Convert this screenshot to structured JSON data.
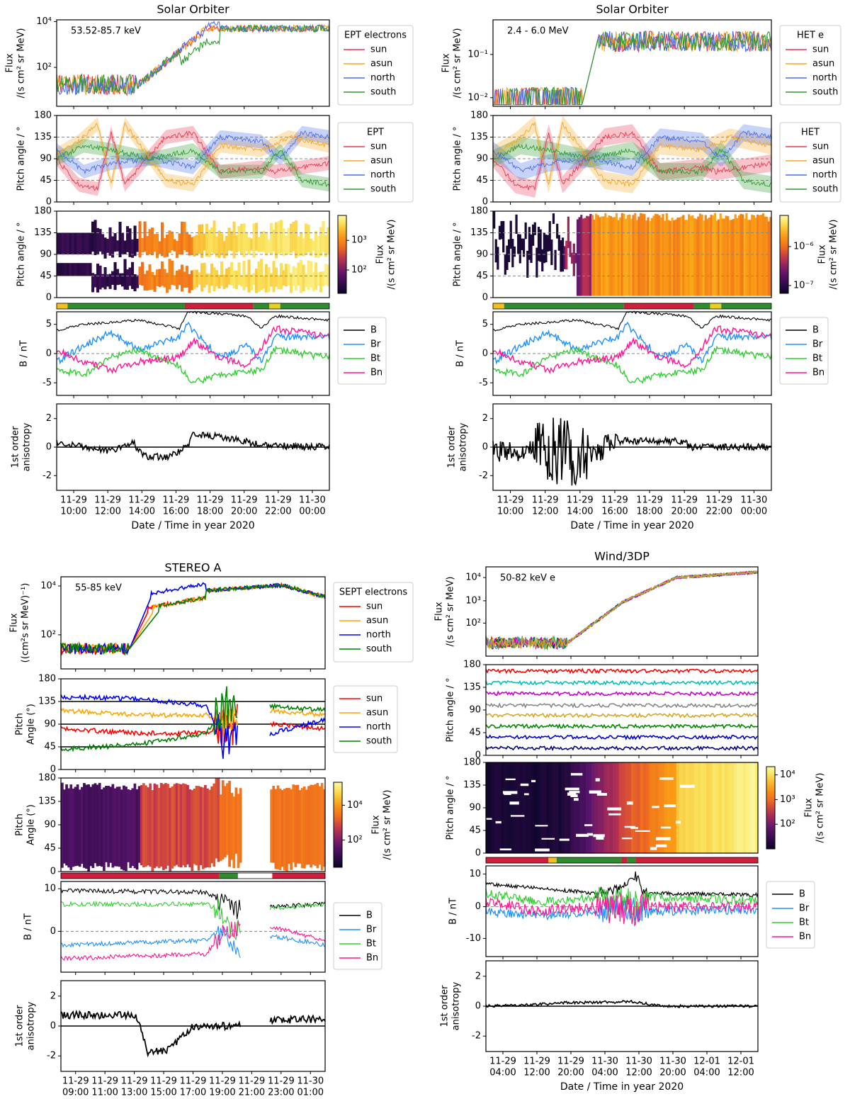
{
  "figure": {
    "panels": [
      {
        "title": "Solar Orbiter",
        "energy_label": "53.52-85.7 keV",
        "xlabel": "Date / Time in year 2020",
        "xticks": [
          [
            "11-29",
            "10:00"
          ],
          [
            "11-29",
            "12:00"
          ],
          [
            "11-29",
            "14:00"
          ],
          [
            "11-29",
            "16:00"
          ],
          [
            "11-29",
            "18:00"
          ],
          [
            "11-29",
            "20:00"
          ],
          [
            "11-29",
            "22:00"
          ],
          [
            "11-30",
            "00:00"
          ]
        ],
        "flux": {
          "ylabel": [
            "Flux",
            "/(s cm² sr MeV)"
          ],
          "ytick_labels": [
            "10⁴",
            "10²"
          ],
          "legend_title": "EPT electrons",
          "legend": [
            "sun",
            "asun",
            "north",
            "south"
          ]
        },
        "pa": {
          "ylabel": "Pitch angle / °",
          "ytick_labels": [
            "0",
            "45",
            "90",
            "135",
            "180"
          ],
          "legend_title": "EPT",
          "legend": [
            "sun",
            "asun",
            "north",
            "south"
          ]
        },
        "spec": {
          "ylabel": "Pitch angle / °",
          "ytick_labels": [
            "0",
            "45",
            "90",
            "135",
            "180"
          ],
          "cbar_label": [
            "Flux",
            "/(s cm² sr MeV)"
          ],
          "cbar_ticks": [
            "10³",
            "10²"
          ]
        },
        "b": {
          "ylabel": "B / nT",
          "ytick_labels": [
            "5",
            "0",
            "-5"
          ],
          "legend": [
            "B",
            "Br",
            "Bt",
            "Bn"
          ]
        },
        "ani": {
          "ylabel": [
            "1st order",
            "anisotropy"
          ],
          "ytick_labels": [
            "2",
            "0",
            "-2"
          ]
        }
      },
      {
        "title": "Solar Orbiter",
        "energy_label": "2.4 - 6.0 MeV",
        "xlabel": "Date / Time in year 2020",
        "xticks": [
          [
            "11-29",
            "10:00"
          ],
          [
            "11-29",
            "12:00"
          ],
          [
            "11-29",
            "14:00"
          ],
          [
            "11-29",
            "16:00"
          ],
          [
            "11-29",
            "18:00"
          ],
          [
            "11-29",
            "20:00"
          ],
          [
            "11-29",
            "22:00"
          ],
          [
            "11-30",
            "00:00"
          ]
        ],
        "flux": {
          "ylabel": [
            "Flux",
            "/(s cm² sr MeV)"
          ],
          "ytick_labels": [
            "10⁻¹",
            "10⁻²"
          ],
          "legend_title": "HET e",
          "legend": [
            "sun",
            "asun",
            "north",
            "south"
          ]
        },
        "pa": {
          "ylabel": "Pitch angle / °",
          "ytick_labels": [
            "0",
            "45",
            "90",
            "135",
            "180"
          ],
          "legend_title": "HET",
          "legend": [
            "sun",
            "asun",
            "north",
            "south"
          ]
        },
        "spec": {
          "ylabel": "Pitch angle / °",
          "ytick_labels": [
            "0",
            "45",
            "90",
            "135",
            "180"
          ],
          "cbar_label": [
            "Flux",
            "/(s cm² sr MeV)"
          ],
          "cbar_ticks": [
            "10⁻⁶",
            "10⁻⁷"
          ]
        },
        "b": {
          "ylabel": "B / nT",
          "ytick_labels": [
            "5",
            "0",
            "-5"
          ],
          "legend": [
            "B",
            "Br",
            "Bt",
            "Bn"
          ]
        },
        "ani": {
          "ylabel": [
            "1st order",
            "anisotropy"
          ],
          "ytick_labels": [
            "2",
            "0",
            "-2"
          ]
        }
      },
      {
        "title": "STEREO A",
        "energy_label": "55-85 keV",
        "xlabel": "",
        "xticks": [
          [
            "11-29",
            "09:00"
          ],
          [
            "11-29",
            "11:00"
          ],
          [
            "11-29",
            "13:00"
          ],
          [
            "11-29",
            "15:00"
          ],
          [
            "11-29",
            "17:00"
          ],
          [
            "11-29",
            "19:00"
          ],
          [
            "11-29",
            "21:00"
          ],
          [
            "11-29",
            "23:00"
          ],
          [
            "11-30",
            "01:00"
          ]
        ],
        "flux": {
          "ylabel": [
            "Flux",
            "((cm²s sr MeV)⁻¹)"
          ],
          "ytick_labels": [
            "10⁴",
            "10²"
          ],
          "legend_title": "SEPT electrons",
          "legend": [
            "sun",
            "asun",
            "north",
            "south"
          ]
        },
        "pa": {
          "ylabel": [
            "Pitch",
            "Angle (°)"
          ],
          "ytick_labels": [
            "0",
            "45",
            "90",
            "135",
            "180"
          ],
          "legend_title": "",
          "legend": [
            "sun",
            "asun",
            "north",
            "south"
          ]
        },
        "spec": {
          "ylabel": [
            "Pitch",
            "Angle (°)"
          ],
          "ytick_labels": [
            "0",
            "45",
            "90",
            "135",
            "180"
          ],
          "cbar_label": [
            "Flux",
            "/(s cm² sr MeV)"
          ],
          "cbar_ticks": [
            "10⁴",
            "10²"
          ]
        },
        "b": {
          "ylabel": "B / nT",
          "ytick_labels": [
            "10",
            "0"
          ],
          "legend": [
            "B",
            "Br",
            "Bt",
            "Bn"
          ]
        },
        "ani": {
          "ylabel": [
            "1st order",
            "anisotropy"
          ],
          "ytick_labels": [
            "2",
            "0",
            "-2"
          ]
        }
      },
      {
        "title": "Wind/3DP",
        "energy_label": "50-82 keV e",
        "xlabel": "Date / Time in year 2020",
        "xticks": [
          [
            "11-29",
            "04:00"
          ],
          [
            "11-29",
            "12:00"
          ],
          [
            "11-29",
            "20:00"
          ],
          [
            "11-30",
            "04:00"
          ],
          [
            "11-30",
            "12:00"
          ],
          [
            "11-30",
            "20:00"
          ],
          [
            "12-01",
            "04:00"
          ],
          [
            "12-01",
            "12:00"
          ]
        ],
        "flux": {
          "ylabel": [
            "Flux",
            "/(s cm² sr MeV)"
          ],
          "ytick_labels": [
            "10⁴",
            "10³",
            "10²"
          ],
          "legend_title": "",
          "legend": []
        },
        "pa": {
          "ylabel": "Pitch angle / °",
          "ytick_labels": [
            "0",
            "45",
            "90",
            "135",
            "180"
          ],
          "legend_title": "",
          "legend": []
        },
        "spec": {
          "ylabel": "Pitch angle / °",
          "ytick_labels": [
            "0",
            "45",
            "90",
            "135",
            "180"
          ],
          "cbar_label": [
            "Flux",
            "/(s cm² sr MeV)"
          ],
          "cbar_ticks": [
            "10⁴",
            "10³",
            "10²"
          ]
        },
        "b": {
          "ylabel": "B / nT",
          "ytick_labels": [
            "10",
            "0",
            "-10"
          ],
          "legend": [
            "B",
            "Br",
            "Bt",
            "Bn"
          ]
        },
        "ani": {
          "ylabel": [
            "1st order",
            "anisotropy"
          ],
          "ytick_labels": [
            "2",
            "0",
            "-2"
          ]
        }
      }
    ]
  },
  "colors": {
    "sun": "#e8374f",
    "asun": "#f5a623",
    "north": "#4a6cf0",
    "south": "#2e9b2e",
    "B": "#000000",
    "Br": "#1e90ff",
    "Bt": "#32cd32",
    "Bn": "#ff1493",
    "stereo_sun": "#ff0000",
    "stereo_asun": "#ffa500",
    "stereo_north": "#0000ff",
    "stereo_south": "#008000"
  },
  "chart_data": [
    {
      "type": "line",
      "title": "Solar Orbiter",
      "subtitle": "53.52-85.7 keV",
      "x": [
        "11-29 10:00",
        "11-29 12:00",
        "11-29 14:00",
        "11-29 16:00",
        "11-29 18:00",
        "11-29 20:00",
        "11-29 22:00",
        "11-30 00:00"
      ],
      "series": [
        {
          "name": "sun",
          "values": [
            40,
            45,
            300,
            3000,
            4000,
            3500,
            3500,
            3500
          ]
        },
        {
          "name": "asun",
          "values": [
            40,
            45,
            200,
            2500,
            3000,
            3200,
            3500,
            3500
          ]
        },
        {
          "name": "north",
          "values": [
            40,
            45,
            250,
            2800,
            2000,
            3000,
            3500,
            3500
          ]
        },
        {
          "name": "south",
          "values": [
            40,
            45,
            200,
            2000,
            1500,
            3000,
            3500,
            3500
          ]
        }
      ],
      "ylabel": "Flux /(s cm² sr MeV)",
      "xlabel": "Date / Time in year 2020",
      "yscale": "log"
    },
    {
      "type": "line",
      "title": "Solar Orbiter",
      "subtitle": "2.4 - 6.0 MeV",
      "x": [
        "11-29 10:00",
        "11-29 12:00",
        "11-29 14:00",
        "11-29 16:00",
        "11-29 18:00",
        "11-29 20:00",
        "11-29 22:00",
        "11-30 00:00"
      ],
      "series": [
        {
          "name": "sun",
          "values": [
            0.012,
            0.012,
            0.25,
            0.2,
            0.15,
            0.14,
            0.13,
            0.13
          ]
        },
        {
          "name": "asun",
          "values": [
            0.012,
            0.012,
            0.2,
            0.18,
            0.14,
            0.13,
            0.12,
            0.12
          ]
        },
        {
          "name": "north",
          "values": [
            0.012,
            0.012,
            0.22,
            0.19,
            0.15,
            0.14,
            0.13,
            0.13
          ]
        },
        {
          "name": "south",
          "values": [
            0.012,
            0.012,
            0.2,
            0.18,
            0.14,
            0.13,
            0.12,
            0.12
          ]
        }
      ],
      "ylabel": "Flux /(s cm² sr MeV)",
      "xlabel": "Date / Time in year 2020",
      "yscale": "log"
    },
    {
      "type": "line",
      "title": "STEREO A",
      "subtitle": "55-85 keV",
      "x": [
        "11-29 09:00",
        "11-29 11:00",
        "11-29 13:00",
        "11-29 15:00",
        "11-29 17:00",
        "11-29 19:00",
        "11-29 21:00",
        "11-29 23:00",
        "11-30 01:00"
      ],
      "series": [
        {
          "name": "sun",
          "values": [
            40,
            40,
            40,
            1000,
            3000,
            6000,
            9000,
            8000,
            4000
          ]
        },
        {
          "name": "asun",
          "values": [
            30,
            30,
            30,
            800,
            3000,
            6000,
            9000,
            7000,
            3000
          ]
        },
        {
          "name": "north",
          "values": [
            35,
            35,
            40,
            3000,
            4000,
            6000,
            9000,
            7000,
            3000
          ]
        },
        {
          "name": "south",
          "values": [
            40,
            40,
            40,
            500,
            3000,
            6000,
            8500,
            7000,
            3000
          ]
        }
      ],
      "ylabel": "Flux ((cm²s sr MeV)⁻¹)",
      "yscale": "log"
    },
    {
      "type": "line",
      "title": "Wind/3DP",
      "subtitle": "50-82 keV e",
      "x": [
        "11-29 04:00",
        "11-29 12:00",
        "11-29 20:00",
        "11-30 04:00",
        "11-30 12:00",
        "11-30 20:00",
        "12-01 04:00",
        "12-01 12:00"
      ],
      "ylabel": "Flux /(s cm² sr MeV)",
      "xlabel": "Date / Time in year 2020",
      "yscale": "log",
      "series": [
        {
          "values": [
            40,
            40,
            60,
            1000,
            3000,
            7000,
            10000,
            12000
          ]
        }
      ]
    }
  ]
}
